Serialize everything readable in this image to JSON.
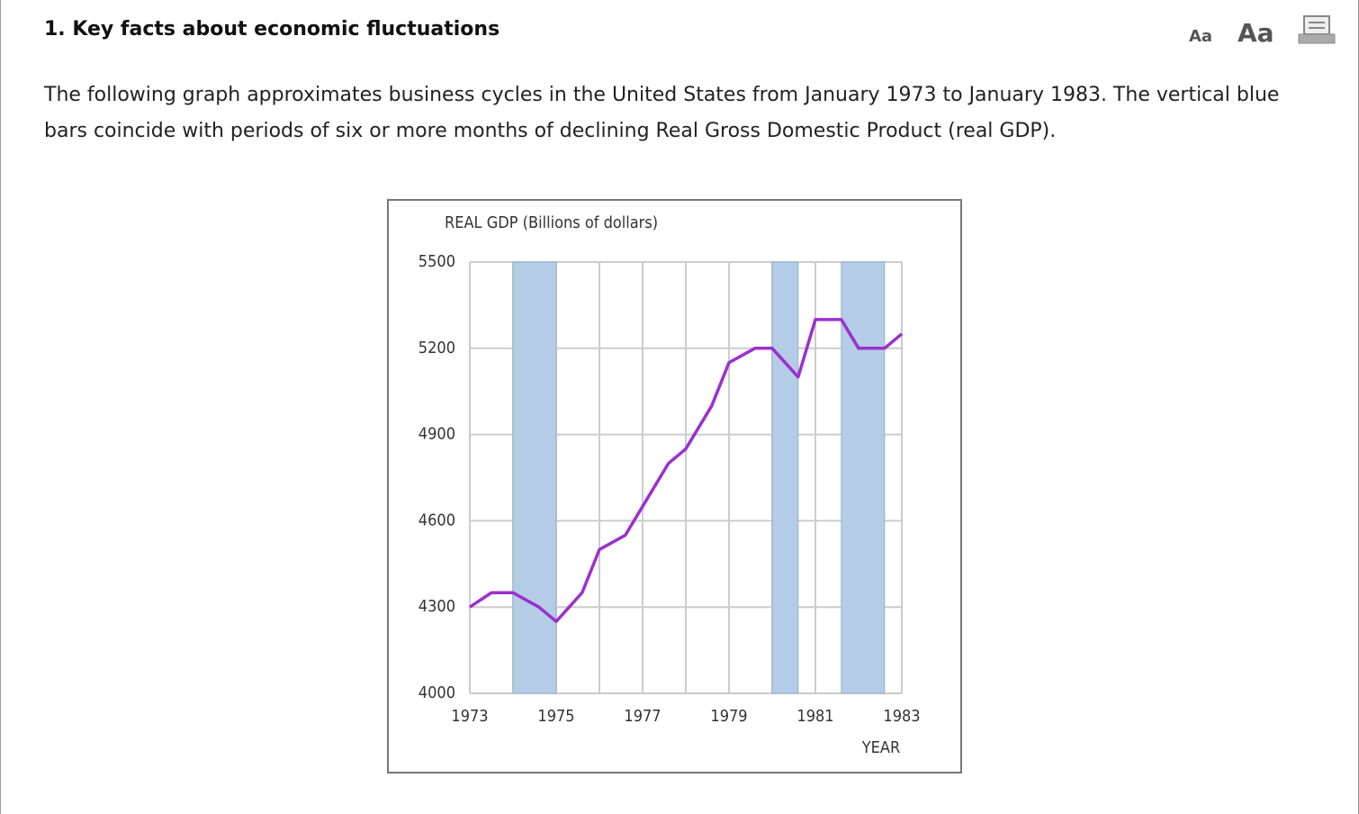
{
  "header": {
    "title": "1. Key facts about economic fluctuations",
    "font_small": "Aa",
    "font_large": "Aa"
  },
  "intro": "The following graph approximates business cycles in the United States from January 1973 to January 1983. The vertical blue bars coincide with periods of six or more months of declining Real Gross Domestic Product (real GDP).",
  "chart_data": {
    "type": "line",
    "y_label": "REAL GDP (Billions of dollars)",
    "x_label": "YEAR",
    "x": [
      1973,
      1973.5,
      1974,
      1974.6,
      1975,
      1975.6,
      1976,
      1976.6,
      1977,
      1977.6,
      1978,
      1978.6,
      1979,
      1979.6,
      1980,
      1980.6,
      1981,
      1981.6,
      1982,
      1982.6,
      1983
    ],
    "values": [
      4300,
      4350,
      4350,
      4300,
      4250,
      4350,
      4500,
      4550,
      4650,
      4800,
      4850,
      5000,
      5150,
      5200,
      5200,
      5100,
      5300,
      5300,
      5200,
      5200,
      5250
    ],
    "color": "#9b30d0",
    "recessions": [
      [
        1974,
        1975
      ],
      [
        1980,
        1980.6
      ],
      [
        1981.6,
        1982.6
      ]
    ],
    "recession_color": "#b4cce5",
    "xlim": [
      1973,
      1983
    ],
    "xticks": [
      1973,
      1975,
      1977,
      1979,
      1981,
      1983
    ],
    "ylim": [
      4000,
      5500
    ],
    "yticks": [
      4000,
      4300,
      4600,
      4900,
      5200,
      5500
    ],
    "grid": true
  }
}
